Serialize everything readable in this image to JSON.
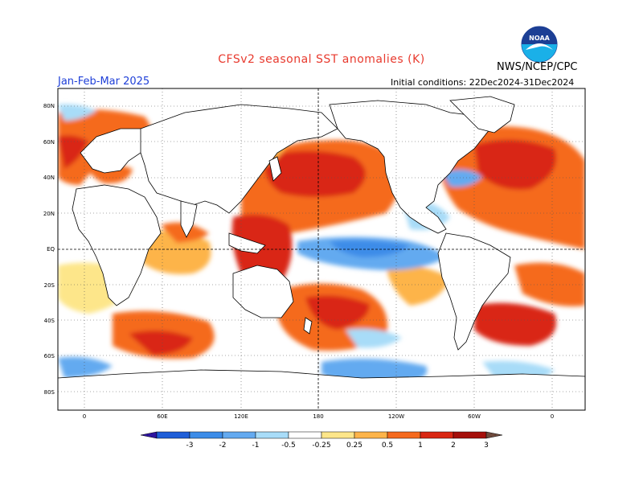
{
  "title": "CFSv2 seasonal SST anomalies (K)",
  "organization": "NWS/NCEP/CPC",
  "logo_text": "NOAA",
  "period": "Jan-Feb-Mar 2025",
  "initial_conditions": "Initial conditions: 22Dec2024-31Dec2024",
  "lat_labels": [
    "80N",
    "60N",
    "40N",
    "20N",
    "EQ",
    "20S",
    "40S",
    "60S",
    "80S"
  ],
  "lon_labels": [
    "0",
    "60E",
    "120E",
    "180",
    "120W",
    "60W",
    "0"
  ],
  "colorbar": {
    "levels": [
      "-3",
      "-2",
      "-1",
      "-0.5",
      "-0.25",
      "0.25",
      "0.5",
      "1",
      "2",
      "3"
    ],
    "colors": [
      "#2e14a0",
      "#1e5ed8",
      "#3c8ce8",
      "#64aaf0",
      "#a8dcf8",
      "#ffffff",
      "#fde68a",
      "#fdb44a",
      "#f56a1e",
      "#d92612",
      "#a50f0a",
      "#6e4a3c"
    ]
  },
  "palette": {
    "land": "#ffffff",
    "ocean_neutral": "#ffffff",
    "warm_light": "#fde68a",
    "warm_mid": "#fdb44a",
    "warm": "#f56a1e",
    "hot": "#d92612",
    "very_hot": "#a50f0a",
    "cool_light": "#a8dcf8",
    "cool": "#64aaf0",
    "cold": "#3c8ce8"
  }
}
